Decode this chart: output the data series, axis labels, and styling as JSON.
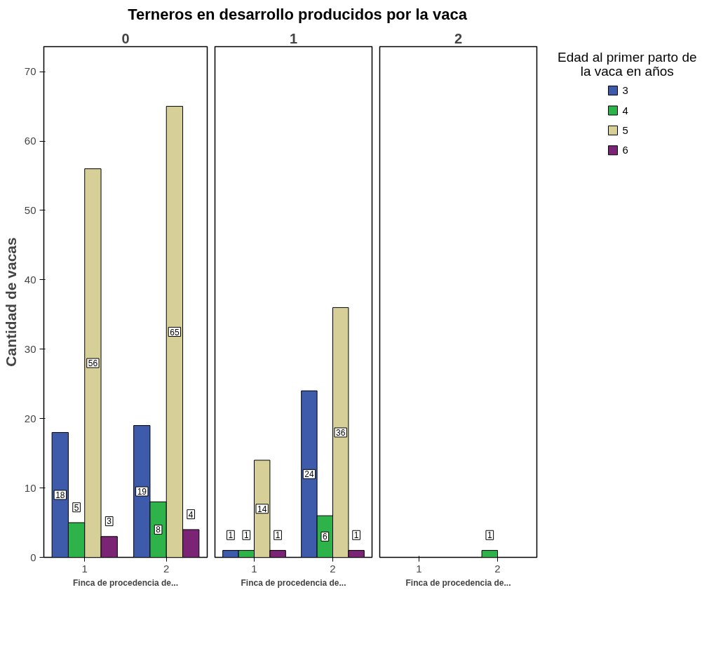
{
  "chart_data": [
    {
      "type": "bar",
      "title": "0",
      "annotations": [
        "Terneros en desarrollo producidos por la vaca"
      ],
      "xlabel": "Finca de procedencia de...",
      "ylabel": "Cantidad de vacas",
      "categories": [
        "1",
        "2"
      ],
      "ylim": [
        0,
        73.6
      ],
      "yticks": [
        0,
        10,
        20,
        30,
        40,
        50,
        60,
        70
      ],
      "data_labels": true,
      "grid": false,
      "legend": "right",
      "legend_title": "Edad al primer parto de\nla vaca en años",
      "series": [
        {
          "name": "3",
          "color": "#3e5bab",
          "values": [
            18,
            19
          ]
        },
        {
          "name": "4",
          "color": "#2db34a",
          "values": [
            5,
            8
          ]
        },
        {
          "name": "5",
          "color": "#d6cf97",
          "values": [
            56,
            65
          ]
        },
        {
          "name": "6",
          "color": "#7b2475",
          "values": [
            3,
            4
          ]
        }
      ]
    },
    {
      "type": "bar",
      "title": "1",
      "xlabel": "Finca de procedencia de...",
      "categories": [
        "1",
        "2"
      ],
      "ylim": [
        0,
        73.6
      ],
      "yticks": [
        0,
        10,
        20,
        30,
        40,
        50,
        60,
        70
      ],
      "tick_labels": "x",
      "data_labels": true,
      "grid": false,
      "series": [
        {
          "name": "3",
          "color": "#3e5bab",
          "values": [
            1,
            24
          ]
        },
        {
          "name": "4",
          "color": "#2db34a",
          "values": [
            1,
            6
          ]
        },
        {
          "name": "5",
          "color": "#d6cf97",
          "values": [
            14,
            36
          ]
        },
        {
          "name": "6",
          "color": "#7b2475",
          "values": [
            1,
            1
          ]
        }
      ]
    },
    {
      "type": "bar",
      "title": "2",
      "xlabel": "Finca de procedencia de...",
      "categories": [
        "1",
        "2"
      ],
      "ylim": [
        0,
        73.6
      ],
      "yticks": [
        0,
        10,
        20,
        30,
        40,
        50,
        60,
        70
      ],
      "tick_labels": "x",
      "data_labels": true,
      "grid": false,
      "series": [
        {
          "name": "3",
          "color": "#3e5bab",
          "values": [
            null,
            null
          ]
        },
        {
          "name": "4",
          "color": "#2db34a",
          "values": [
            null,
            1
          ]
        },
        {
          "name": "5",
          "color": "#d6cf97",
          "values": [
            null,
            null
          ]
        },
        {
          "name": "6",
          "color": "#7b2475",
          "values": [
            null,
            null
          ]
        }
      ]
    }
  ]
}
